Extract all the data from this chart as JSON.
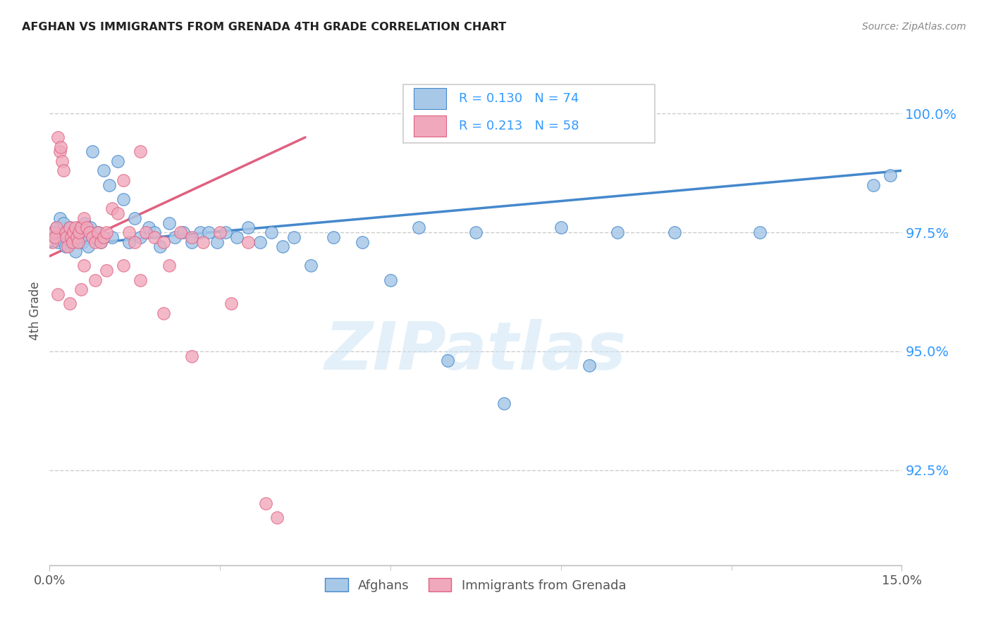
{
  "title": "AFGHAN VS IMMIGRANTS FROM GRENADA 4TH GRADE CORRELATION CHART",
  "source": "Source: ZipAtlas.com",
  "ylabel": "4th Grade",
  "color_blue": "#a8c8e8",
  "color_pink": "#f0a8bc",
  "line_blue": "#4488cc",
  "line_pink": "#e06080",
  "legend_label1": "Afghans",
  "legend_label2": "Immigrants from Grenada",
  "watermark": "ZIPatlas",
  "xmin": 0.0,
  "xmax": 15.0,
  "ymin": 90.5,
  "ymax": 101.2,
  "yticks": [
    92.5,
    95.0,
    97.5,
    100.0
  ],
  "ytick_labels": [
    "92.5%",
    "95.0%",
    "97.5%",
    "100.0%"
  ],
  "blue_line_x0": 0.0,
  "blue_line_y0": 97.2,
  "blue_line_x1": 15.0,
  "blue_line_y1": 98.8,
  "pink_line_x0": 0.0,
  "pink_line_y0": 97.0,
  "pink_line_x1": 4.5,
  "pink_line_y1": 99.5,
  "blue_x": [
    0.05,
    0.08,
    0.12,
    0.15,
    0.18,
    0.22,
    0.25,
    0.28,
    0.32,
    0.35,
    0.38,
    0.42,
    0.45,
    0.48,
    0.52,
    0.55,
    0.58,
    0.62,
    0.65,
    0.68,
    0.72,
    0.75,
    0.85,
    0.9,
    0.95,
    1.05,
    1.1,
    1.2,
    1.3,
    1.4,
    1.5,
    1.6,
    1.75,
    1.85,
    1.95,
    2.1,
    2.2,
    2.35,
    2.5,
    2.65,
    2.8,
    2.95,
    3.1,
    3.3,
    3.5,
    3.7,
    3.9,
    4.1,
    4.3,
    4.6,
    5.0,
    5.5,
    6.0,
    6.5,
    7.0,
    7.5,
    8.0,
    9.0,
    9.5,
    10.0,
    11.0,
    12.5,
    14.5,
    14.8
  ],
  "blue_y": [
    97.5,
    97.4,
    97.6,
    97.3,
    97.8,
    97.5,
    97.7,
    97.2,
    97.4,
    97.6,
    97.3,
    97.5,
    97.1,
    97.4,
    97.6,
    97.5,
    97.3,
    97.7,
    97.4,
    97.2,
    97.6,
    99.2,
    97.5,
    97.3,
    98.8,
    98.5,
    97.4,
    99.0,
    98.2,
    97.3,
    97.8,
    97.4,
    97.6,
    97.5,
    97.2,
    97.7,
    97.4,
    97.5,
    97.3,
    97.5,
    97.5,
    97.3,
    97.5,
    97.4,
    97.6,
    97.3,
    97.5,
    97.2,
    97.4,
    96.8,
    97.4,
    97.3,
    96.5,
    97.6,
    94.8,
    97.5,
    93.9,
    97.6,
    94.7,
    97.5,
    97.5,
    97.5,
    98.5,
    98.7
  ],
  "pink_x": [
    0.05,
    0.08,
    0.1,
    0.12,
    0.15,
    0.18,
    0.2,
    0.22,
    0.25,
    0.28,
    0.3,
    0.32,
    0.35,
    0.38,
    0.4,
    0.42,
    0.45,
    0.48,
    0.5,
    0.52,
    0.55,
    0.6,
    0.65,
    0.7,
    0.75,
    0.8,
    0.85,
    0.9,
    0.95,
    1.0,
    1.1,
    1.2,
    1.3,
    1.4,
    1.5,
    1.6,
    1.7,
    1.85,
    2.0,
    2.1,
    2.3,
    2.5,
    2.7,
    3.0,
    3.5,
    0.15,
    0.35,
    0.55,
    0.6,
    0.8,
    1.0,
    1.3,
    1.6,
    2.0,
    2.5,
    3.2,
    3.8,
    4.0
  ],
  "pink_y": [
    97.3,
    97.5,
    97.4,
    97.6,
    99.5,
    99.2,
    99.3,
    99.0,
    98.8,
    97.5,
    97.4,
    97.2,
    97.6,
    97.4,
    97.3,
    97.5,
    97.6,
    97.4,
    97.3,
    97.5,
    97.6,
    97.8,
    97.6,
    97.5,
    97.4,
    97.3,
    97.5,
    97.3,
    97.4,
    97.5,
    98.0,
    97.9,
    98.6,
    97.5,
    97.3,
    99.2,
    97.5,
    97.4,
    97.3,
    96.8,
    97.5,
    97.4,
    97.3,
    97.5,
    97.3,
    96.2,
    96.0,
    96.3,
    96.8,
    96.5,
    96.7,
    96.8,
    96.5,
    95.8,
    94.9,
    96.0,
    91.8,
    91.5
  ]
}
